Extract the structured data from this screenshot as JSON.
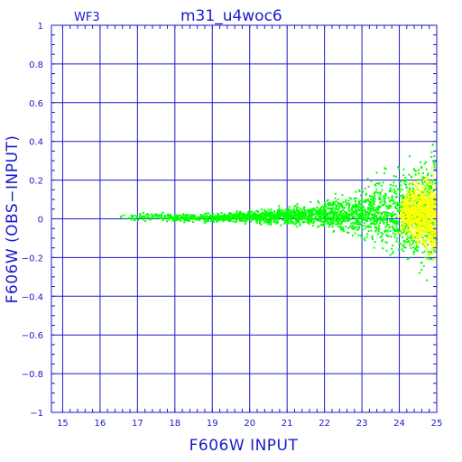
{
  "chart_data": {
    "type": "scatter",
    "title": "m31_u4woc6",
    "panel_label": "WF3",
    "xlabel": "F606W INPUT",
    "ylabel": "F606W (OBS−INPUT)",
    "xlim": [
      14.7,
      25
    ],
    "ylim": [
      -1,
      1
    ],
    "xticks": [
      15,
      16,
      17,
      18,
      19,
      20,
      21,
      22,
      23,
      24,
      25
    ],
    "yticks": [
      -1,
      -0.8,
      -0.6,
      -0.4,
      -0.2,
      0,
      0.2,
      0.4,
      0.6,
      0.8,
      1
    ],
    "ytick_labels": [
      "−1",
      "−0.8",
      "−0.6",
      "−0.4",
      "−0.2",
      "0",
      "0.2",
      "0.4",
      "0.6",
      "0.8",
      "1"
    ],
    "grid": true,
    "colors": {
      "axis": "#1a1acc",
      "grid": "#1a1acc",
      "green": "#00ff00",
      "yellow": "#ffff00"
    },
    "series": [
      {
        "color": "#00ff00",
        "x": [
          16.5,
          16.8,
          17.0,
          17.5,
          18.0,
          18.5,
          19.0,
          19.5,
          20.0,
          20.5,
          21.0,
          21.5,
          22.0,
          22.3,
          22.6,
          22.9,
          23.2,
          23.5,
          23.8,
          24.0,
          24.2,
          24.4,
          24.6,
          24.8,
          25.0
        ],
        "y": [
          0.01,
          0.01,
          0.01,
          0.01,
          0.005,
          0.005,
          0.005,
          0.005,
          0.01,
          0.01,
          0.015,
          0.02,
          0.02,
          0.02,
          0.02,
          0.03,
          0.03,
          0.03,
          0.03,
          0.04,
          0.04,
          0.04,
          0.04,
          0.04,
          0.04
        ],
        "spread": [
          0.015,
          0.015,
          0.016,
          0.017,
          0.018,
          0.019,
          0.02,
          0.022,
          0.025,
          0.03,
          0.035,
          0.045,
          0.055,
          0.07,
          0.08,
          0.1,
          0.12,
          0.14,
          0.16,
          0.18,
          0.2,
          0.22,
          0.24,
          0.26,
          0.28
        ]
      },
      {
        "color": "#ffff00",
        "x": [
          24.0,
          24.2,
          24.4,
          24.6,
          24.8,
          25.0
        ],
        "y": [
          0.02,
          0.03,
          0.03,
          0.03,
          0.02,
          0.0
        ],
        "spread": [
          0.08,
          0.1,
          0.12,
          0.14,
          0.16,
          0.18
        ]
      }
    ]
  }
}
